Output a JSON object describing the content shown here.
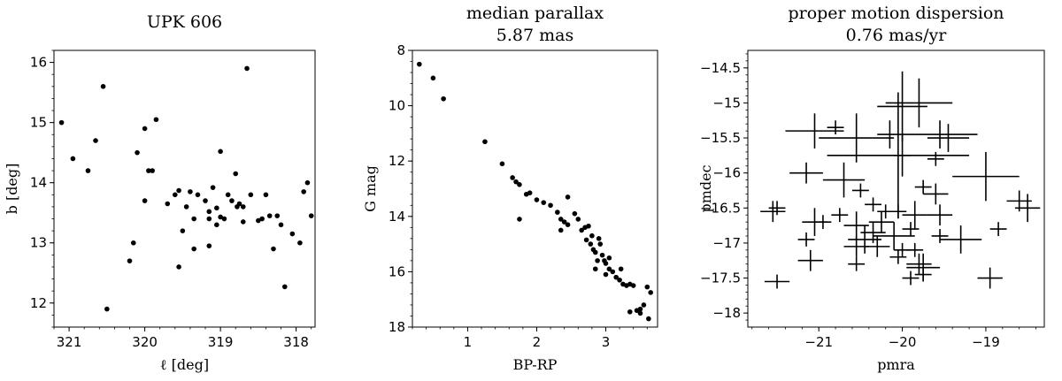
{
  "chart_data": [
    {
      "type": "scatter",
      "title": "UPK 606",
      "xlabel": "ℓ [deg]",
      "ylabel": "b [deg]",
      "xlim": [
        321.2,
        317.75
      ],
      "ylim": [
        11.6,
        16.2
      ],
      "xticks": [
        321,
        320,
        319,
        318
      ],
      "yticks": [
        12,
        13,
        14,
        15,
        16
      ],
      "points": [
        [
          321.1,
          15.0
        ],
        [
          320.95,
          14.4
        ],
        [
          320.75,
          14.2
        ],
        [
          320.65,
          14.7
        ],
        [
          320.55,
          15.6
        ],
        [
          320.5,
          11.9
        ],
        [
          320.2,
          12.7
        ],
        [
          320.1,
          14.5
        ],
        [
          320.0,
          14.9
        ],
        [
          320.0,
          13.7
        ],
        [
          319.95,
          14.2
        ],
        [
          319.9,
          14.2
        ],
        [
          319.85,
          15.05
        ],
        [
          319.7,
          13.65
        ],
        [
          319.6,
          13.8
        ],
        [
          319.55,
          13.87
        ],
        [
          319.55,
          12.6
        ],
        [
          319.5,
          13.2
        ],
        [
          319.45,
          13.6
        ],
        [
          319.4,
          13.85
        ],
        [
          319.35,
          13.4
        ],
        [
          319.3,
          13.8
        ],
        [
          319.2,
          13.7
        ],
        [
          319.15,
          13.52
        ],
        [
          319.15,
          13.4
        ],
        [
          319.15,
          12.95
        ],
        [
          319.1,
          13.92
        ],
        [
          319.05,
          13.3
        ],
        [
          319.05,
          13.58
        ],
        [
          319.0,
          13.43
        ],
        [
          319.0,
          14.52
        ],
        [
          318.95,
          13.4
        ],
        [
          318.9,
          13.8
        ],
        [
          318.85,
          13.7
        ],
        [
          318.8,
          14.15
        ],
        [
          318.78,
          13.6
        ],
        [
          318.75,
          13.65
        ],
        [
          318.7,
          13.6
        ],
        [
          318.6,
          13.8
        ],
        [
          318.65,
          15.9
        ],
        [
          318.5,
          13.37
        ],
        [
          318.45,
          13.4
        ],
        [
          318.4,
          13.8
        ],
        [
          318.35,
          13.45
        ],
        [
          318.3,
          12.9
        ],
        [
          318.25,
          13.45
        ],
        [
          318.2,
          13.3
        ],
        [
          318.15,
          12.27
        ],
        [
          318.05,
          13.15
        ],
        [
          317.95,
          13.0
        ],
        [
          317.9,
          13.85
        ],
        [
          317.85,
          14.0
        ],
        [
          317.8,
          13.45
        ],
        [
          319.35,
          12.9
        ],
        [
          318.7,
          13.35
        ],
        [
          320.15,
          13.0
        ]
      ]
    },
    {
      "type": "scatter",
      "title": "median parallax",
      "subtitle": "5.87 mas",
      "xlabel": "BP-RP",
      "ylabel": "G mag",
      "xlim": [
        0.2,
        3.75
      ],
      "ylim": [
        18.0,
        8.0
      ],
      "xticks": [
        1,
        2,
        3
      ],
      "yticks": [
        8,
        10,
        12,
        14,
        16,
        18
      ],
      "points": [
        [
          0.3,
          8.5
        ],
        [
          0.5,
          9.0
        ],
        [
          0.65,
          9.75
        ],
        [
          1.25,
          11.3
        ],
        [
          1.5,
          12.1
        ],
        [
          1.65,
          12.6
        ],
        [
          1.7,
          12.75
        ],
        [
          1.75,
          12.85
        ],
        [
          1.75,
          14.1
        ],
        [
          1.85,
          13.2
        ],
        [
          1.9,
          13.15
        ],
        [
          2.0,
          13.4
        ],
        [
          2.1,
          13.5
        ],
        [
          2.2,
          13.6
        ],
        [
          2.3,
          13.85
        ],
        [
          2.35,
          14.1
        ],
        [
          2.4,
          14.2
        ],
        [
          2.45,
          14.3
        ],
        [
          2.45,
          13.3
        ],
        [
          2.55,
          13.9
        ],
        [
          2.6,
          14.1
        ],
        [
          2.65,
          14.5
        ],
        [
          2.7,
          14.4
        ],
        [
          2.72,
          14.85
        ],
        [
          2.75,
          14.35
        ],
        [
          2.78,
          15.0
        ],
        [
          2.8,
          14.7
        ],
        [
          2.82,
          15.2
        ],
        [
          2.85,
          15.3
        ],
        [
          2.88,
          15.6
        ],
        [
          2.9,
          14.8
        ],
        [
          2.92,
          15.0
        ],
        [
          2.95,
          15.4
        ],
        [
          2.98,
          15.6
        ],
        [
          3.0,
          15.7
        ],
        [
          3.05,
          15.5
        ],
        [
          3.05,
          15.9
        ],
        [
          3.1,
          16.0
        ],
        [
          3.15,
          16.2
        ],
        [
          3.2,
          16.3
        ],
        [
          3.22,
          15.9
        ],
        [
          3.25,
          16.45
        ],
        [
          3.3,
          16.5
        ],
        [
          3.35,
          16.45
        ],
        [
          3.4,
          16.5
        ],
        [
          3.35,
          17.45
        ],
        [
          3.45,
          17.4
        ],
        [
          3.5,
          17.35
        ],
        [
          3.5,
          17.5
        ],
        [
          3.55,
          17.2
        ],
        [
          3.6,
          16.55
        ],
        [
          3.62,
          17.7
        ],
        [
          3.65,
          16.75
        ],
        [
          2.35,
          14.5
        ],
        [
          2.85,
          15.9
        ],
        [
          3.0,
          16.1
        ]
      ]
    },
    {
      "type": "errorbar",
      "title": "proper motion dispersion",
      "subtitle": "0.76 mas/yr",
      "xlabel": "pmra",
      "ylabel": "pmdec",
      "xlim": [
        -21.85,
        -18.3
      ],
      "ylim": [
        -18.2,
        -14.25
      ],
      "xticks": [
        -21,
        -20,
        -19
      ],
      "yticks": [
        -14.5,
        -15.0,
        -15.5,
        -16.0,
        -16.5,
        -17.0,
        -17.5,
        -18.0
      ],
      "points": [
        [
          -20.0,
          -15.05,
          0.3,
          0.5
        ],
        [
          -19.8,
          -15.0,
          0.4,
          0.35
        ],
        [
          -21.05,
          -15.4,
          0.35,
          0.25
        ],
        [
          -20.55,
          -15.5,
          0.45,
          0.35
        ],
        [
          -20.15,
          -15.45,
          0.15,
          0.2
        ],
        [
          -20.0,
          -15.75,
          0.1,
          0.3
        ],
        [
          -19.55,
          -15.45,
          0.45,
          0.2
        ],
        [
          -19.45,
          -15.5,
          0.25,
          0.2
        ],
        [
          -19.6,
          -15.8,
          0.1,
          0.1
        ],
        [
          -20.05,
          -15.75,
          0.85,
          0.9
        ],
        [
          -20.8,
          -15.35,
          0.1,
          0.1
        ],
        [
          -19.0,
          -16.05,
          0.4,
          0.35
        ],
        [
          -21.15,
          -16.0,
          0.2,
          0.15
        ],
        [
          -20.7,
          -16.1,
          0.25,
          0.25
        ],
        [
          -20.5,
          -16.25,
          0.1,
          0.1
        ],
        [
          -19.75,
          -16.2,
          0.1,
          0.1
        ],
        [
          -19.6,
          -16.3,
          0.15,
          0.15
        ],
        [
          -20.05,
          -16.55,
          0.1,
          0.1
        ],
        [
          -18.6,
          -16.4,
          0.15,
          0.15
        ],
        [
          -18.5,
          -16.5,
          0.15,
          0.2
        ],
        [
          -21.55,
          -16.55,
          0.15,
          0.15
        ],
        [
          -21.5,
          -16.5,
          0.1,
          0.1
        ],
        [
          -20.35,
          -16.45,
          0.1,
          0.1
        ],
        [
          -20.2,
          -16.55,
          0.1,
          0.1
        ],
        [
          -19.85,
          -16.6,
          0.15,
          0.2
        ],
        [
          -19.55,
          -16.6,
          0.15,
          0.15
        ],
        [
          -20.75,
          -16.6,
          0.1,
          0.1
        ],
        [
          -20.95,
          -16.7,
          0.1,
          0.1
        ],
        [
          -21.05,
          -16.7,
          0.15,
          0.2
        ],
        [
          -20.55,
          -16.75,
          0.15,
          0.2
        ],
        [
          -20.25,
          -16.7,
          0.15,
          0.15
        ],
        [
          -19.9,
          -16.8,
          0.1,
          0.1
        ],
        [
          -19.55,
          -16.9,
          0.1,
          0.1
        ],
        [
          -18.85,
          -16.8,
          0.1,
          0.1
        ],
        [
          -21.15,
          -16.95,
          0.1,
          0.1
        ],
        [
          -20.45,
          -16.95,
          0.2,
          0.2
        ],
        [
          -20.35,
          -16.85,
          0.15,
          0.15
        ],
        [
          -20.1,
          -16.9,
          0.25,
          0.2
        ],
        [
          -19.3,
          -16.95,
          0.25,
          0.2
        ],
        [
          -20.0,
          -17.1,
          0.1,
          0.1
        ],
        [
          -20.55,
          -17.05,
          0.15,
          0.15
        ],
        [
          -20.3,
          -17.05,
          0.15,
          0.15
        ],
        [
          -19.85,
          -17.1,
          0.1,
          0.1
        ],
        [
          -20.05,
          -17.2,
          0.1,
          0.1
        ],
        [
          -21.1,
          -17.25,
          0.15,
          0.15
        ],
        [
          -20.55,
          -17.3,
          0.1,
          0.1
        ],
        [
          -19.8,
          -17.3,
          0.15,
          0.15
        ],
        [
          -19.75,
          -17.35,
          0.2,
          0.2
        ],
        [
          -19.9,
          -17.5,
          0.1,
          0.1
        ],
        [
          -21.5,
          -17.55,
          0.15,
          0.1
        ],
        [
          -18.95,
          -17.5,
          0.15,
          0.15
        ],
        [
          -19.75,
          -17.45,
          0.1,
          0.1
        ]
      ]
    }
  ]
}
